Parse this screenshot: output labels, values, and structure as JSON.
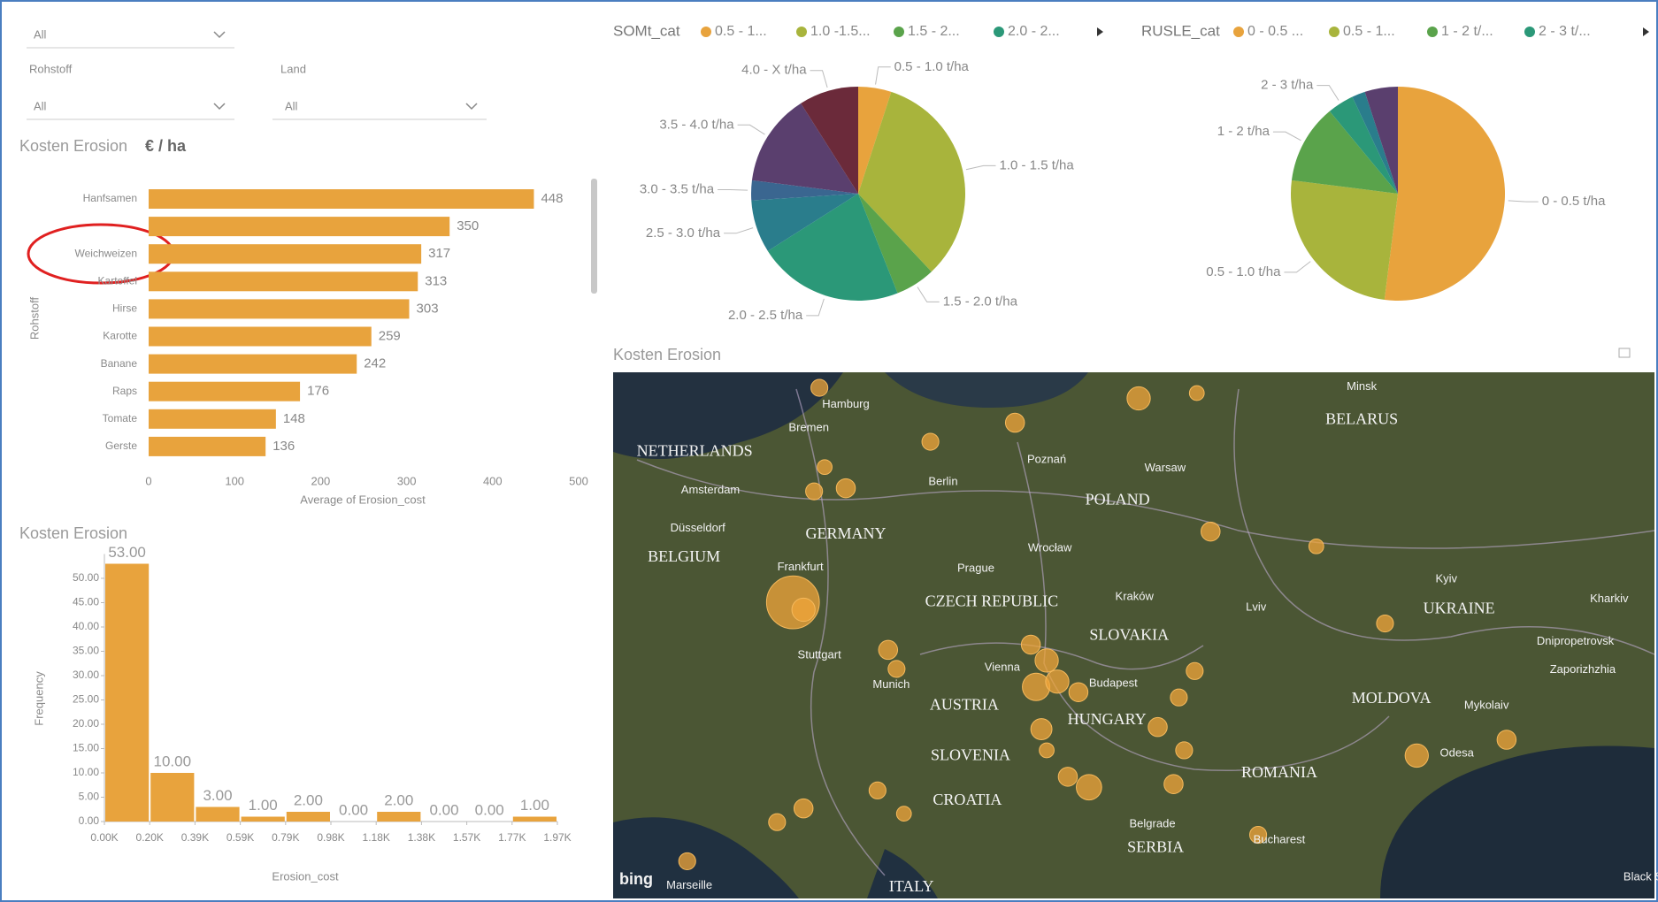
{
  "filters": {
    "top": {
      "value": "All"
    },
    "rohstoff": {
      "label": "Rohstoff",
      "value": "All"
    },
    "land": {
      "label": "Land",
      "value": "All"
    }
  },
  "chart_data": [
    {
      "type": "bar",
      "orientation": "horizontal",
      "title": "Kosten Erosion",
      "title_unit": "€ / ha",
      "categories": [
        "Hanfsamen",
        null,
        "Weichweizen",
        "Kartoffel",
        "Hirse",
        "Karotte",
        "Banane",
        "Raps",
        "Tomate",
        "Gerste"
      ],
      "values": [
        448,
        350,
        317,
        313,
        303,
        259,
        242,
        176,
        148,
        136
      ],
      "color": "#e8a33d",
      "xlim": [
        0,
        500
      ],
      "xticks": [
        0,
        100,
        200,
        300,
        400,
        500
      ],
      "xlabel": "Average of Erosion_cost",
      "ylabel": "Rohstoff",
      "grid": false
    },
    {
      "type": "histogram",
      "title": "Kosten Erosion",
      "bins": [
        0,
        196.7,
        393.4,
        590.1,
        786.8,
        983.5,
        1180.2,
        1376.9,
        1573.6,
        1770.3,
        1967
      ],
      "values": [
        53,
        10,
        3,
        1,
        2,
        0,
        2,
        0,
        0,
        1
      ],
      "value_labels": [
        "53.00",
        "10.00",
        "3.00",
        "1.00",
        "2.00",
        "0.00",
        "2.00",
        "0.00",
        "0.00",
        "1.00"
      ],
      "color": "#e8a33d",
      "xlim": [
        0,
        1967
      ],
      "xticks": [
        {
          "value": 0,
          "label": "0.00K"
        },
        {
          "value": 196.7,
          "label": "0.20K"
        },
        {
          "value": 393.4,
          "label": "0.39K"
        },
        {
          "value": 590.1,
          "label": "0.59K"
        },
        {
          "value": 786.8,
          "label": "0.79K"
        },
        {
          "value": 983.5,
          "label": "0.98K"
        },
        {
          "value": 1180.2,
          "label": "1.18K"
        },
        {
          "value": 1376.9,
          "label": "1.38K"
        },
        {
          "value": 1573.6,
          "label": "1.57K"
        },
        {
          "value": 1770.3,
          "label": "1.77K"
        },
        {
          "value": 1967,
          "label": "1.97K"
        }
      ],
      "ylim": [
        0,
        55
      ],
      "yticks": [
        {
          "value": 0,
          "label": "0.00"
        },
        {
          "value": 5,
          "label": "5.00"
        },
        {
          "value": 10,
          "label": "10.00"
        },
        {
          "value": 15,
          "label": "15.00"
        },
        {
          "value": 20,
          "label": "20.00"
        },
        {
          "value": 25,
          "label": "25.00"
        },
        {
          "value": 30,
          "label": "30.00"
        },
        {
          "value": 35,
          "label": "35.00"
        },
        {
          "value": 40,
          "label": "40.00"
        },
        {
          "value": 45,
          "label": "45.00"
        },
        {
          "value": 50,
          "label": "50.00"
        }
      ],
      "xlabel": "Erosion_cost",
      "ylabel": "Frequency"
    },
    {
      "type": "pie",
      "legend_title": "SOMt_cat",
      "legend_labels": [
        "0.5 - 1...",
        "1.0 -1.5...",
        "1.5 - 2...",
        "2.0 - 2..."
      ],
      "categories": [
        "0.5 - 1.0 t/ha",
        "1.0 - 1.5 t/ha",
        "1.5 - 2.0 t/ha",
        "2.0 - 2.5 t/ha",
        "2.5 - 3.0 t/ha",
        "3.0 - 3.5 t/ha",
        "3.5 - 4.0 t/ha",
        "4.0 - X t/ha"
      ],
      "values": [
        5,
        33,
        6,
        22,
        8,
        3,
        14,
        9
      ],
      "colors": [
        "#e8a33d",
        "#a8b43c",
        "#5aa34b",
        "#2b9878",
        "#2a7d8c",
        "#3a6690",
        "#5a3f6e",
        "#6b2a3a"
      ]
    },
    {
      "type": "pie",
      "legend_title": "RUSLE_cat",
      "legend_labels": [
        "0 - 0.5 ...",
        "0.5 - 1...",
        "1 - 2 t/...",
        "2 - 3 t/..."
      ],
      "categories": [
        "0 - 0.5 t/ha",
        "0.5 - 1.0 t/ha",
        "1 - 2 t/ha",
        "2 - 3 t/ha",
        null,
        null
      ],
      "values": [
        52,
        25,
        12,
        4,
        2,
        5
      ],
      "colors": [
        "#e8a33d",
        "#a8b43c",
        "#5aa34b",
        "#2b9878",
        "#2a7d8c",
        "#5a3f6e"
      ]
    }
  ],
  "map": {
    "title": "Kosten Erosion",
    "labels": [
      "Minsk",
      "BELARUS",
      "Hamburg",
      "Bremen",
      "NETHERLANDS",
      "Amsterdam",
      "Berlin",
      "Poznań",
      "Warsaw",
      "POLAND",
      "GERMANY",
      "Düsseldorf",
      "BELGIUM",
      "Frankfurt",
      "Prague",
      "Wrocław",
      "Kyiv",
      "CZECH REPUBLIC",
      "Kraków",
      "Lviv",
      "UKRAINE",
      "Kharkiv",
      "SLOVAKIA",
      "Stuttgart",
      "Munich",
      "Vienna",
      "Budapest",
      "AUSTRIA",
      "HUNGARY",
      "MOLDOVA",
      "Dnipropetrovsk",
      "Zaporizhzhia",
      "Mykolaiv",
      "Odesa",
      "SLOVENIA",
      "CROATIA",
      "ROMANIA",
      "Belgrade",
      "SERBIA",
      "Bucharest",
      "Marseille",
      "ITALY",
      "Black Sea"
    ],
    "attribution": "bing"
  }
}
